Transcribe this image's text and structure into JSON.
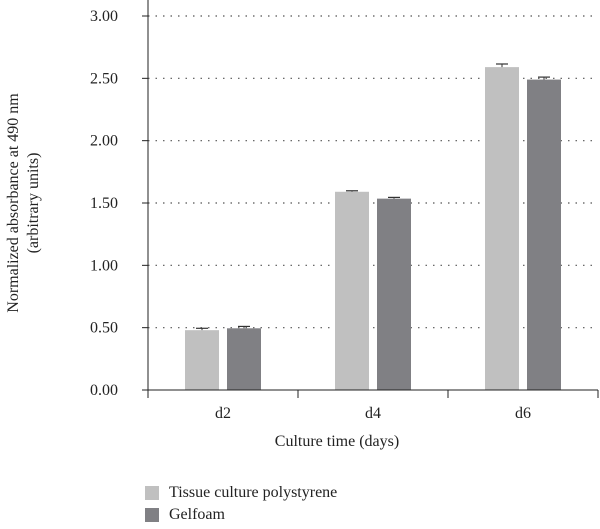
{
  "chart_data": {
    "type": "bar",
    "title": "",
    "xlabel": "Culture time (days)",
    "ylabel_lines": [
      "Normalized absorbance at 490 nm",
      "(arbitrary units)"
    ],
    "categories": [
      "d2",
      "d4",
      "d6"
    ],
    "ylim": [
      0,
      3.0
    ],
    "yticks": [
      "0.00",
      "0.50",
      "1.00",
      "1.50",
      "2.00",
      "2.50",
      "3.00"
    ],
    "ytick_values": [
      0,
      0.5,
      1.0,
      1.5,
      2.0,
      2.5,
      3.0
    ],
    "grid": "horizontal-dotted",
    "legend_position": "bottom-left",
    "series": [
      {
        "name": "Tissue culture polystyrene",
        "color": "#c0c0c0",
        "values": [
          0.48,
          1.59,
          2.59
        ],
        "errors": [
          0.015,
          0.008,
          0.025
        ]
      },
      {
        "name": "Gelfoam",
        "color": "#808084",
        "values": [
          0.495,
          1.535,
          2.49
        ],
        "errors": [
          0.015,
          0.01,
          0.02
        ]
      }
    ]
  }
}
